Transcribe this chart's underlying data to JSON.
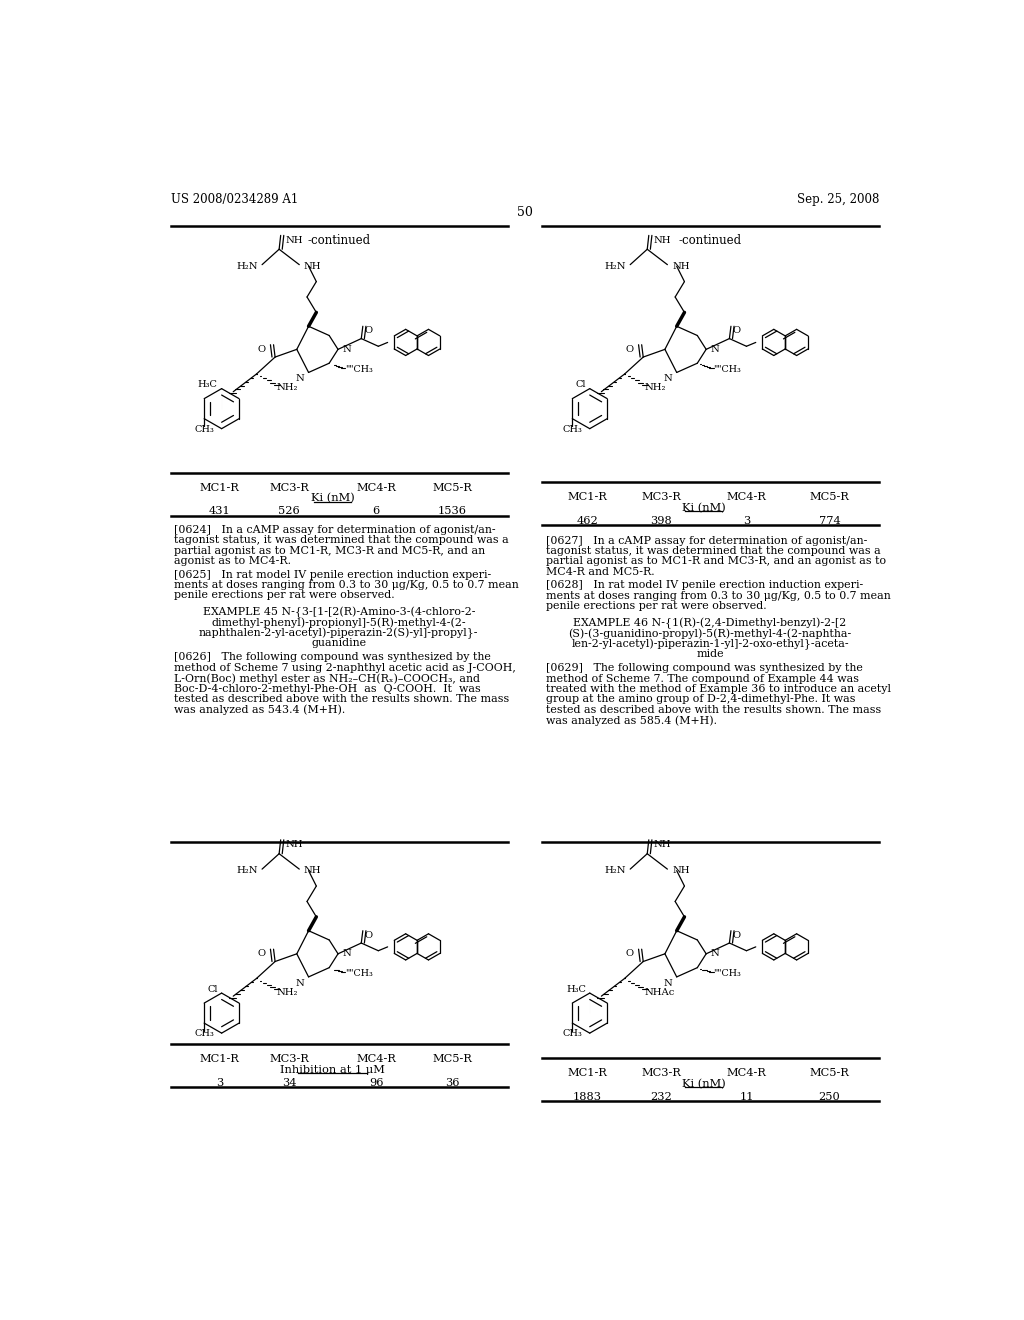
{
  "bg_color": "#ffffff",
  "page_width": 10.24,
  "page_height": 13.2,
  "header_left": "US 2008/0234289 A1",
  "header_right": "Sep. 25, 2008",
  "page_number": "50",
  "table1_headers": [
    "MC1-R",
    "MC3-R",
    "MC4-R",
    "MC5-R"
  ],
  "table1_ki_label": "Ki (nM)",
  "table1_values": [
    "431",
    "526",
    "6",
    "1536"
  ],
  "table2_headers": [
    "MC1-R",
    "MC3-R",
    "MC4-R",
    "MC5-R"
  ],
  "table2_ki_label": "Ki (nM)",
  "table2_values": [
    "462",
    "398",
    "3",
    "774"
  ],
  "para_0624": "[0624]   In a cAMP assay for determination of agonist/an-\ntagonist status, it was determined that the compound was a\npartial agonist as to MC1-R, MC3-R and MC5-R, and an\nagonist as to MC4-R.",
  "para_0625": "[0625]   In rat model IV penile erection induction experi-\nments at doses ranging from 0.3 to 30 μg/Kg, 0.5 to 0.7 mean\npenile erections per rat were observed.",
  "example45_title": "EXAMPLE 45 N-{3-[1-[2(R)-Amino-3-(4-chloro-2-\ndimethyl-phenyl)-propionyl]-5(R)-methyl-4-(2-\nnaphthalen-2-yl-acetyl)-piperazin-2(S)-yl]-propyl}-\nguanidine",
  "para_0626": "[0626]   The following compound was synthesized by the\nmethod of Scheme 7 using 2-naphthyl acetic acid as J-COOH,\nL-Orn(Boc) methyl ester as NH₂–CH(Rₓ)–COOCH₃, and\nBoc-D-4-chloro-2-methyl-Phe-OH  as  Q-COOH.  It  was\ntested as described above with the results shown. The mass\nwas analyzed as 543.4 (M+H).",
  "para_0627": "[0627]   In a cAMP assay for determination of agonist/an-\ntagonist status, it was determined that the compound was a\npartial agonist as to MC1-R and MC3-R, and an agonist as to\nMC4-R and MC5-R.",
  "para_0628": "[0628]   In rat model IV penile erection induction experi-\nments at doses ranging from 0.3 to 30 μg/Kg, 0.5 to 0.7 mean\npenile erections per rat were observed.",
  "example46_title": "EXAMPLE 46 N-{1(R)-(2,4-Dimethyl-benzyl)-2-[2\n(S)-(3-guanidino-propyl)-5(R)-methyl-4-(2-naphtha-\nlen-2-yl-acetyl)-piperazin-1-yl]-2-oxo-ethyl}-aceta-\nmide",
  "para_0629": "[0629]   The following compound was synthesized by the\nmethod of Scheme 7. The compound of Example 44 was\ntreated with the method of Example 36 to introduce an acetyl\ngroup at the amino group of D-2,4-dimethyl-Phe. It was\ntested as described above with the results shown. The mass\nwas analyzed as 585.4 (M+H).",
  "table3_headers": [
    "MC1-R",
    "MC3-R",
    "MC4-R",
    "MC5-R"
  ],
  "table3_inhib_label": "Inhibition at 1 μM",
  "table3_values": [
    "3",
    "34",
    "96",
    "36"
  ],
  "table4_headers": [
    "MC1-R",
    "MC3-R",
    "MC4-R",
    "MC5-R"
  ],
  "table4_ki_label": "Ki (nM)",
  "table4_values": [
    "1883",
    "232",
    "11",
    "250"
  ]
}
